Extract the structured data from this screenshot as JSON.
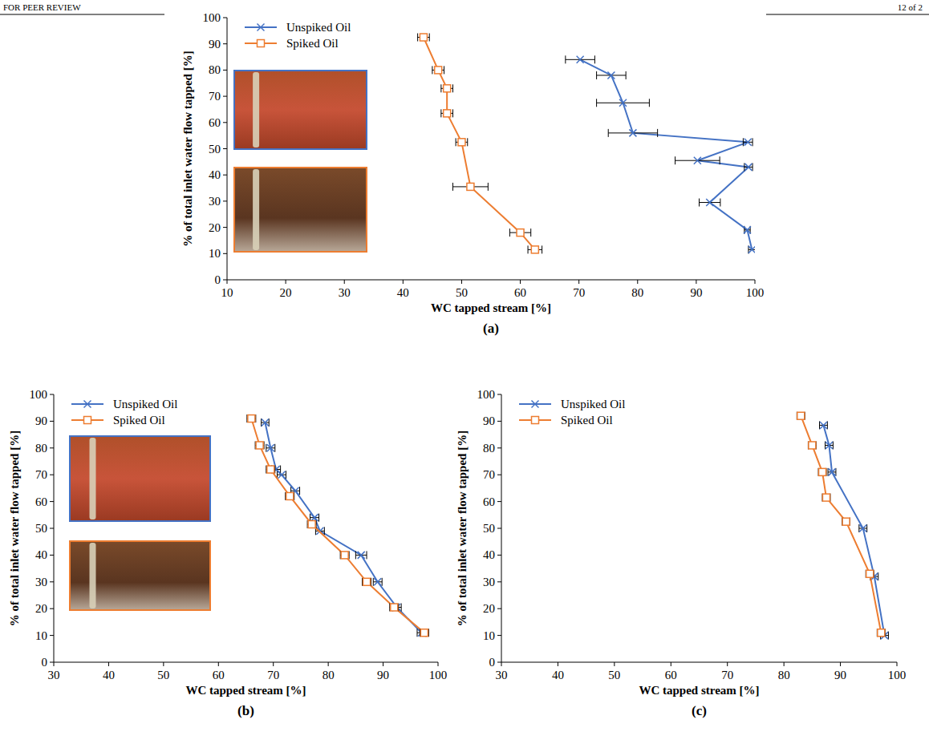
{
  "header": {
    "left": "FOR PEER REVIEW",
    "right": "12 of 2"
  },
  "chart_data": [
    {
      "type": "line",
      "title": "(a)",
      "x_label": "WC tapped stream [%]",
      "y_label": "% of total inlet water flow tapped [%]",
      "xlim": [
        10,
        100
      ],
      "xticks": [
        10,
        20,
        30,
        40,
        50,
        60,
        70,
        80,
        90,
        100
      ],
      "ylim": [
        0,
        100
      ],
      "yticks": [
        0,
        10,
        20,
        30,
        40,
        50,
        60,
        70,
        80,
        90,
        100
      ],
      "grid": false,
      "legend": "top-left",
      "series": [
        {
          "name": "Unspiked Oil",
          "color": "#4472c4",
          "marker": "x",
          "line_style": "solid",
          "x": [
            99.5,
            98.7,
            92.3,
            98.9,
            90.2,
            98.8,
            79.2,
            77.5,
            75.5,
            70.2
          ],
          "values": [
            11.5,
            19,
            29.5,
            43,
            45.5,
            52.5,
            56,
            67.5,
            78,
            84
          ],
          "x_error": [
            0.6,
            0.5,
            1.8,
            0.7,
            3.8,
            0.8,
            4.2,
            4.5,
            2.5,
            2.5
          ]
        },
        {
          "name": "Spiked Oil",
          "color": "#ed7d31",
          "marker": "square",
          "line_style": "solid",
          "x": [
            62.5,
            60,
            51.5,
            50,
            47.5,
            47.5,
            46,
            43.5
          ],
          "values": [
            11.5,
            18,
            35.5,
            52.5,
            63.5,
            73,
            80,
            92.5
          ],
          "x_error": [
            1.2,
            1.8,
            3,
            1,
            1,
            1,
            1,
            1
          ]
        }
      ]
    },
    {
      "type": "line",
      "title": "(b)",
      "x_label": "WC tapped stream [%]",
      "y_label": "% of total inlet water flow tapped [%]",
      "xlim": [
        30,
        100
      ],
      "xticks": [
        30,
        40,
        50,
        60,
        70,
        80,
        90,
        100
      ],
      "ylim": [
        0,
        100
      ],
      "yticks": [
        0,
        10,
        20,
        30,
        40,
        50,
        60,
        70,
        80,
        90,
        100
      ],
      "grid": false,
      "legend": "top-left",
      "series": [
        {
          "name": "Unspiked Oil",
          "color": "#4472c4",
          "marker": "x",
          "line_style": "solid",
          "x": [
            97,
            92.5,
            89,
            86,
            78.5,
            77.5,
            74,
            71.5,
            70.5,
            69.5,
            68.5
          ],
          "values": [
            11,
            20.5,
            30,
            40,
            49,
            54,
            64,
            70,
            72,
            80,
            89.5
          ],
          "x_error": [
            0.8,
            0.8,
            0.8,
            1,
            0.8,
            0.8,
            0.8,
            0.8,
            0.8,
            0.8,
            0.7
          ]
        },
        {
          "name": "Spiked Oil",
          "color": "#ed7d31",
          "marker": "square",
          "line_style": "solid",
          "x": [
            97.5,
            92,
            87,
            83,
            77,
            73,
            69.5,
            67.5,
            66
          ],
          "values": [
            11,
            20.5,
            30,
            40,
            51.5,
            62,
            72,
            81,
            91
          ],
          "x_error": [
            0.8,
            0.8,
            0.8,
            0.8,
            0.8,
            0.8,
            0.8,
            0.8,
            0.8
          ]
        }
      ]
    },
    {
      "type": "line",
      "title": "(c)",
      "x_label": "WC tapped stream [%]",
      "y_label": "% of total inlet water flow tapped [%]",
      "xlim": [
        30,
        100
      ],
      "xticks": [
        30,
        40,
        50,
        60,
        70,
        80,
        90,
        100
      ],
      "ylim": [
        0,
        100
      ],
      "yticks": [
        0,
        10,
        20,
        30,
        40,
        50,
        60,
        70,
        80,
        90,
        100
      ],
      "grid": false,
      "legend": "top-left",
      "series": [
        {
          "name": "Unspiked Oil",
          "color": "#4472c4",
          "marker": "x",
          "line_style": "solid",
          "x": [
            97.8,
            96,
            94,
            88.5,
            88,
            87
          ],
          "values": [
            10,
            32,
            50,
            71,
            81,
            88.5
          ],
          "x_error": [
            0.7,
            0.7,
            0.7,
            0.7,
            0.7,
            0.7
          ]
        },
        {
          "name": "Spiked Oil",
          "color": "#ed7d31",
          "marker": "square",
          "line_style": "solid",
          "x": [
            97.2,
            95.2,
            91,
            87.5,
            86.8,
            85,
            83
          ],
          "values": [
            11,
            33,
            52.5,
            61.5,
            71,
            81,
            92
          ],
          "x_error": [
            0.7,
            0.7,
            0.7,
            0.7,
            0.7,
            0.7,
            0.7
          ]
        }
      ]
    }
  ]
}
